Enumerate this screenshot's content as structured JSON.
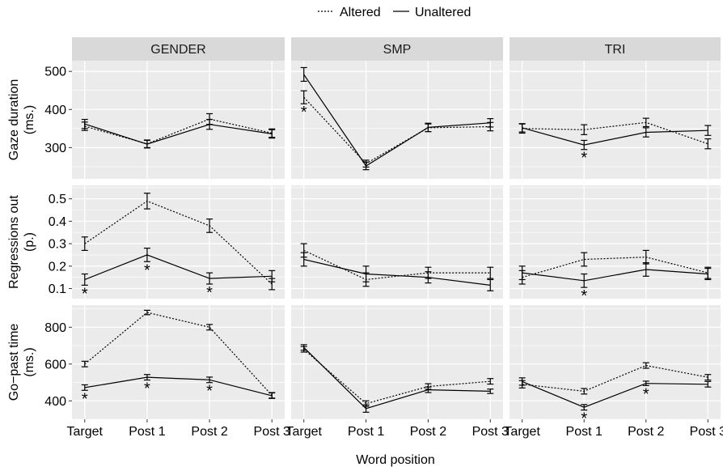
{
  "chart_data": {
    "type": "line",
    "xlabel": "Word position",
    "legend": {
      "placement": "top-center",
      "items": [
        {
          "label": "Altered",
          "linestyle": "dotted"
        },
        {
          "label": "Unaltered",
          "linestyle": "solid"
        }
      ]
    },
    "categories": [
      "Target",
      "Post 1",
      "Post 2",
      "Post 3"
    ],
    "columns": [
      "GENDER",
      "SMP",
      "TRI"
    ],
    "rows": [
      {
        "label": "Gaze duration (ms.)",
        "label_lines": [
          "Gaze duration",
          "(ms.)"
        ],
        "ylim": [
          218,
          528
        ],
        "yticks": [
          300,
          400,
          500
        ],
        "ytick_labels": [
          "300",
          "400",
          "500"
        ]
      },
      {
        "label": "Regressions out (p.)",
        "label_lines": [
          "Regressions out",
          "(p.)"
        ],
        "ylim": [
          0.055,
          0.56
        ],
        "yticks": [
          0.1,
          0.2,
          0.3,
          0.4,
          0.5
        ],
        "ytick_labels": [
          "0.1",
          "0.2",
          "0.3",
          "0.4",
          "0.5"
        ]
      },
      {
        "label": "Go-past time (ms.)",
        "label_lines": [
          "Go−past time",
          "(ms.)"
        ],
        "ylim": [
          300,
          920
        ],
        "yticks": [
          400,
          600,
          800
        ],
        "ytick_labels": [
          "400",
          "600",
          "800"
        ]
      }
    ],
    "grid": true,
    "colors": {
      "panel_bg": "#ebebeb",
      "strip_bg": "#d9d9d9",
      "grid": "#ffffff",
      "line": "#000000"
    },
    "panels": [
      {
        "row": 0,
        "col": 0,
        "series": [
          {
            "name": "Altered",
            "values": [
              356,
              310,
              375,
              338
            ],
            "errors": [
              11,
              10,
              14,
              11
            ]
          },
          {
            "name": "Unaltered",
            "values": [
              362,
              309,
              361,
              336
            ],
            "errors": [
              12,
              10,
              13,
              11
            ]
          }
        ],
        "significant": [
          false,
          false,
          false,
          false
        ]
      },
      {
        "row": 0,
        "col": 1,
        "series": [
          {
            "name": "Altered",
            "values": [
              432,
              258,
              352,
              355
            ],
            "errors": [
              17,
              9,
              10,
              11
            ]
          },
          {
            "name": "Unaltered",
            "values": [
              492,
              252,
              353,
              365
            ],
            "errors": [
              18,
              10,
              11,
              11
            ]
          }
        ],
        "significant": [
          true,
          false,
          false,
          false
        ]
      },
      {
        "row": 0,
        "col": 2,
        "series": [
          {
            "name": "Altered",
            "values": [
              350,
              347,
              366,
              310
            ],
            "errors": [
              12,
              13,
              11,
              13
            ]
          },
          {
            "name": "Unaltered",
            "values": [
              352,
              307,
              340,
              345
            ],
            "errors": [
              11,
              12,
              12,
              13
            ]
          }
        ],
        "significant": [
          false,
          true,
          false,
          false
        ]
      },
      {
        "row": 1,
        "col": 0,
        "series": [
          {
            "name": "Altered",
            "values": [
              0.3,
              0.49,
              0.38,
              0.12
            ],
            "errors": [
              0.03,
              0.035,
              0.03,
              0.025
            ]
          },
          {
            "name": "Unaltered",
            "values": [
              0.14,
              0.25,
              0.145,
              0.155
            ],
            "errors": [
              0.025,
              0.03,
              0.025,
              0.025
            ]
          }
        ],
        "significant": [
          true,
          true,
          true,
          false
        ]
      },
      {
        "row": 1,
        "col": 1,
        "series": [
          {
            "name": "Altered",
            "values": [
              0.27,
              0.14,
              0.17,
              0.17
            ],
            "errors": [
              0.03,
              0.03,
              0.025,
              0.025
            ]
          },
          {
            "name": "Unaltered",
            "values": [
              0.23,
              0.165,
              0.15,
              0.115
            ],
            "errors": [
              0.03,
              0.035,
              0.025,
              0.025
            ]
          }
        ],
        "significant": [
          false,
          false,
          false,
          false
        ]
      },
      {
        "row": 1,
        "col": 2,
        "series": [
          {
            "name": "Altered",
            "values": [
              0.15,
              0.23,
              0.24,
              0.17
            ],
            "errors": [
              0.03,
              0.03,
              0.03,
              0.025
            ]
          },
          {
            "name": "Unaltered",
            "values": [
              0.17,
              0.135,
              0.185,
              0.165
            ],
            "errors": [
              0.03,
              0.03,
              0.03,
              0.025
            ]
          }
        ],
        "significant": [
          false,
          true,
          false,
          false
        ]
      },
      {
        "row": 2,
        "col": 0,
        "series": [
          {
            "name": "Altered",
            "values": [
              600,
              880,
              800,
              430
            ],
            "errors": [
              15,
              12,
              15,
              15
            ]
          },
          {
            "name": "Unaltered",
            "values": [
              472,
              528,
              514,
              428
            ],
            "errors": [
              15,
              15,
              15,
              15
            ]
          }
        ],
        "significant": [
          true,
          true,
          true,
          false
        ]
      },
      {
        "row": 2,
        "col": 1,
        "series": [
          {
            "name": "Altered",
            "values": [
              680,
              385,
              478,
              506
            ],
            "errors": [
              15,
              15,
              15,
              15
            ]
          },
          {
            "name": "Unaltered",
            "values": [
              690,
              358,
              460,
              452
            ],
            "errors": [
              15,
              20,
              15,
              12
            ]
          }
        ],
        "significant": [
          false,
          false,
          false,
          false
        ]
      },
      {
        "row": 2,
        "col": 2,
        "series": [
          {
            "name": "Altered",
            "values": [
              490,
              452,
              592,
              528
            ],
            "errors": [
              20,
              15,
              15,
              15
            ]
          },
          {
            "name": "Unaltered",
            "values": [
              505,
              365,
              495,
              490
            ],
            "errors": [
              20,
              15,
              12,
              15
            ]
          }
        ],
        "significant": [
          false,
          true,
          true,
          false
        ]
      }
    ],
    "significance_marker": "*"
  }
}
